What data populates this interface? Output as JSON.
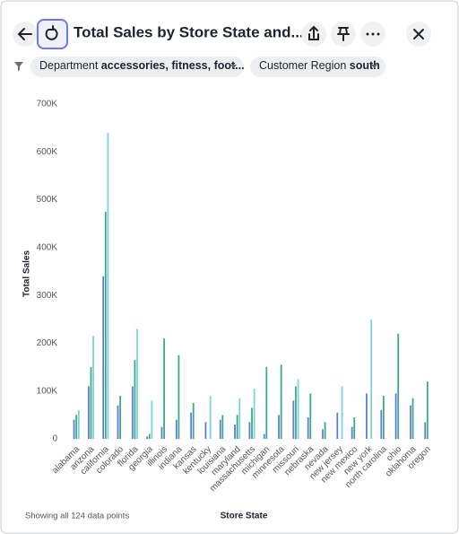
{
  "header": {
    "title": "Total Sales by Store State and..."
  },
  "filters": [
    {
      "name": "Department",
      "value": "accessories, fitness, foot..."
    },
    {
      "name": "Customer Region",
      "value": "south"
    }
  ],
  "footer": {
    "note": "Showing all 124 data points"
  },
  "chart_data": {
    "type": "bar",
    "xlabel": "Store State",
    "ylabel": "Total Sales",
    "categories": [
      "alabama",
      "arizona",
      "california",
      "colorado",
      "florida",
      "georgia",
      "illinois",
      "indiana",
      "kansas",
      "kentucky",
      "louisiana",
      "maryland",
      "massachusetts",
      "michigan",
      "minnesota",
      "missouri",
      "nebraska",
      "nevada",
      "new jersey",
      "new mexico",
      "new york",
      "north carolina",
      "ohio",
      "oklahoma",
      "oregon"
    ],
    "series": [
      {
        "color": "#5b7fd6",
        "values": [
          40000,
          110000,
          340000,
          70000,
          110000,
          5000,
          25000,
          40000,
          55000,
          35000,
          40000,
          30000,
          35000,
          10000,
          50000,
          80000,
          45000,
          20000,
          55000,
          25000,
          95000,
          60000,
          95000,
          70000,
          35000
        ]
      },
      {
        "color": "#3ea98a",
        "values": [
          50000,
          150000,
          475000,
          90000,
          165000,
          10000,
          210000,
          175000,
          75000,
          null,
          50000,
          50000,
          65000,
          150000,
          155000,
          110000,
          95000,
          35000,
          null,
          45000,
          null,
          90000,
          220000,
          85000,
          120000
        ]
      },
      {
        "color": "#7dd3d8",
        "values": [
          60000,
          215000,
          640000,
          null,
          230000,
          80000,
          null,
          null,
          null,
          90000,
          null,
          85000,
          105000,
          null,
          null,
          125000,
          null,
          null,
          110000,
          null,
          250000,
          null,
          null,
          null,
          null
        ]
      }
    ],
    "ylim": [
      0,
      700000
    ],
    "yticks": [
      0,
      {
        "value": 100000,
        "label": "100K"
      },
      {
        "value": 200000,
        "label": "200K"
      },
      {
        "value": 300000,
        "label": "300K"
      },
      {
        "value": 400000,
        "label": "400K"
      },
      {
        "value": 500000,
        "label": "500K"
      },
      {
        "value": 600000,
        "label": "600K"
      },
      {
        "value": 700000,
        "label": "700K"
      }
    ],
    "grid": false
  }
}
